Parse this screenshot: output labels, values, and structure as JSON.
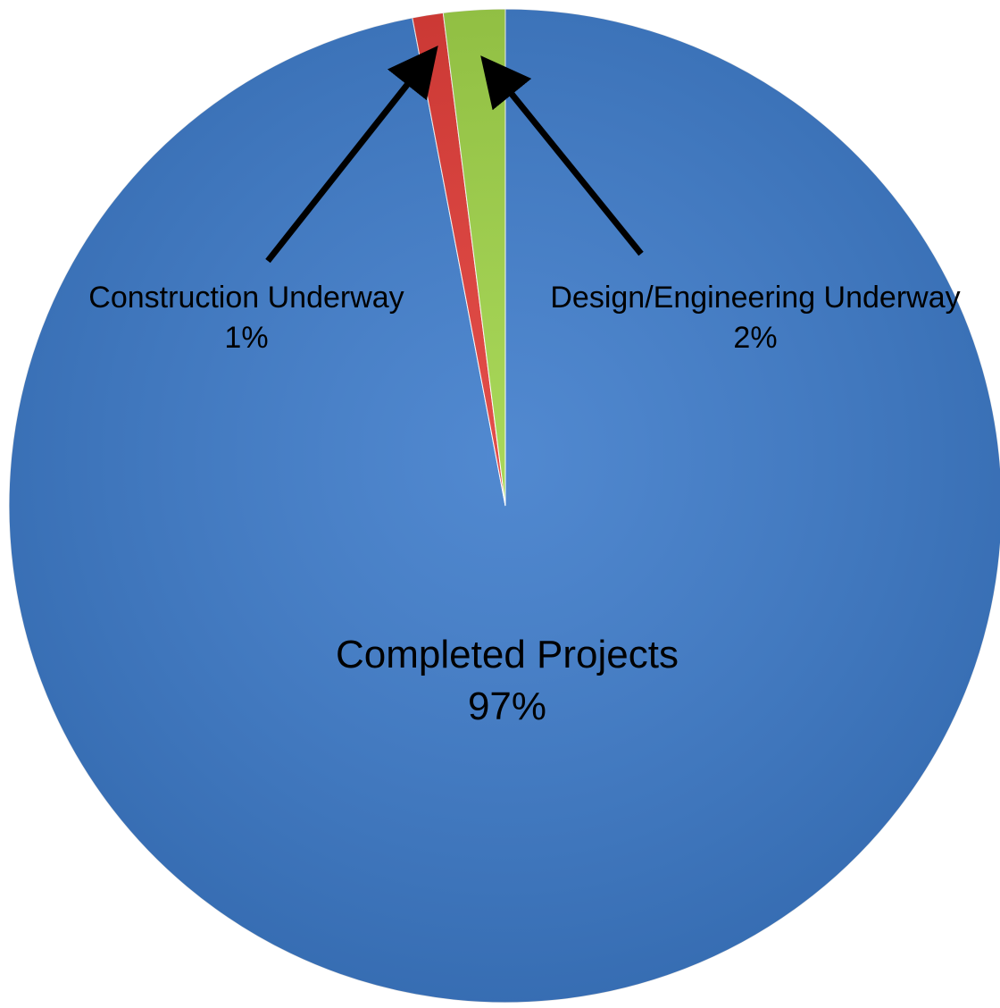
{
  "chart_data": {
    "type": "pie",
    "title": "",
    "slices": [
      {
        "label": "Completed Projects",
        "value": 97,
        "value_label": "97%",
        "color": "#3E7CCB"
      },
      {
        "label": "Construction Underway",
        "value": 1,
        "value_label": "1%",
        "color": "#E03A35"
      },
      {
        "label": "Design/Engineering Underway",
        "value": 2,
        "value_label": "2%",
        "color": "#9ED246"
      }
    ],
    "start_angle_deg": 0,
    "direction": "clockwise",
    "legend": "none",
    "label_style": "category name and percentage; small slices labelled outside with arrows"
  }
}
